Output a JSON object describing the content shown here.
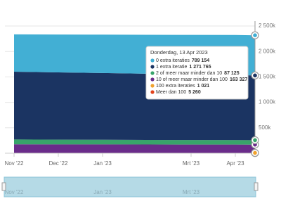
{
  "chart_data": {
    "type": "stacked-area",
    "categories": [
      "Nov '22",
      "Dec '22",
      "Jan '23",
      null,
      "Mrt '23",
      "Apr '23",
      null
    ],
    "series": [
      {
        "name": "0 extra iteraties",
        "color": "#42afd4",
        "values": [
          735000,
          745000,
          755000,
          765000,
          775000,
          785000,
          789154
        ]
      },
      {
        "name": "1 extra iteratie",
        "color": "#1b3462",
        "values": [
          1330000,
          1320000,
          1310000,
          1300000,
          1290000,
          1280000,
          1271765
        ]
      },
      {
        "name": "2 of meer maar minder dan 10",
        "color": "#38a46a",
        "values": [
          95000,
          93000,
          92000,
          90000,
          89000,
          88000,
          87125
        ]
      },
      {
        "name": "10 of meer maar minder dan 100",
        "color": "#6a2c8a",
        "values": [
          170000,
          168000,
          167000,
          166000,
          165000,
          164000,
          163327
        ]
      },
      {
        "name": "100 extra iteraties",
        "color": "#f0a22e",
        "values": [
          1100,
          1090,
          1080,
          1060,
          1050,
          1030,
          1021
        ]
      },
      {
        "name": "Meer dan 100",
        "color": "#e2431c",
        "values": [
          5600,
          5500,
          5450,
          5400,
          5350,
          5300,
          5260
        ]
      }
    ],
    "ylim": [
      0,
      2500000
    ],
    "yticks": [
      {
        "value": 500000,
        "label": "500k"
      },
      {
        "value": 1000000,
        "label": "1 000k"
      },
      {
        "value": 1500000,
        "label": "1 500k"
      },
      {
        "value": 2000000,
        "label": "2 000k"
      },
      {
        "value": 2500000,
        "label": "2 500k"
      }
    ],
    "tooltip": {
      "title": "Donderdag, 13 Apr 2023",
      "value_labels": [
        "789 154",
        "1 271 765",
        "87 125",
        "163 327",
        "1 021",
        "5 260"
      ]
    }
  }
}
